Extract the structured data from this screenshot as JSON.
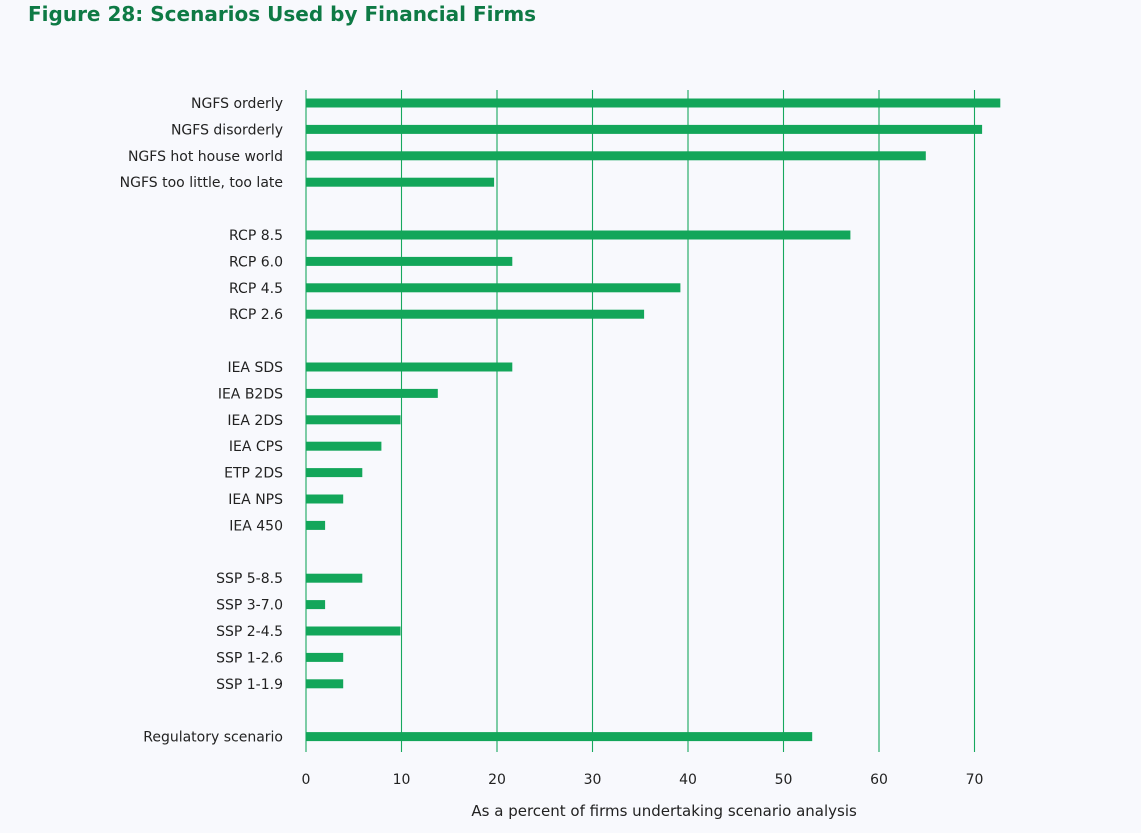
{
  "chart_data": {
    "type": "bar",
    "orientation": "horizontal",
    "title": "Figure 28: Scenarios Used by Financial Firms",
    "xlabel": "As a percent of firms undertaking scenario analysis",
    "ylabel": "",
    "xlim": [
      0,
      75
    ],
    "xticks": [
      0,
      10,
      20,
      30,
      40,
      50,
      60,
      70
    ],
    "grid": "vertical",
    "legend": "none",
    "bar_color": "#13a65a",
    "grid_color": "#17a85e",
    "title_color": "#0e7a45",
    "groups": [
      {
        "categories": [
          "NGFS orderly",
          "NGFS disorderly",
          "NGFS hot house world",
          "NGFS too little, too late"
        ],
        "values": [
          72.7,
          70.8,
          64.9,
          19.7
        ]
      },
      {
        "categories": [
          "RCP 8.5",
          "RCP 6.0",
          "RCP 4.5",
          "RCP 2.6"
        ],
        "values": [
          57.0,
          21.6,
          39.2,
          35.4
        ]
      },
      {
        "categories": [
          "IEA SDS",
          "IEA B2DS",
          "IEA 2DS",
          "IEA CPS",
          "ETP 2DS",
          "IEA NPS",
          "IEA 450"
        ],
        "values": [
          21.6,
          13.8,
          9.9,
          7.9,
          5.9,
          3.9,
          2.0
        ]
      },
      {
        "categories": [
          "SSP 5-8.5",
          "SSP 3-7.0",
          "SSP 2-4.5",
          "SSP 1-2.6",
          "SSP 1-1.9"
        ],
        "values": [
          5.9,
          2.0,
          9.9,
          3.9,
          3.9
        ]
      },
      {
        "categories": [
          "Regulatory scenario"
        ],
        "values": [
          53.0
        ]
      }
    ]
  }
}
